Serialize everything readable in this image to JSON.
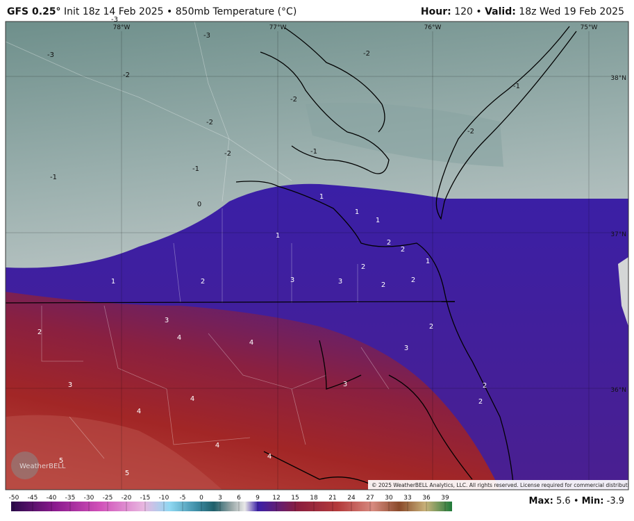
{
  "header": {
    "model": "GFS 0.25°",
    "init": "Init 18z 14 Feb 2025",
    "separator": "•",
    "field": "850mb Temperature (°C)",
    "hour_label": "Hour:",
    "hour": 120,
    "valid_label": "Valid:",
    "valid": "18z Wed 19 Feb 2025"
  },
  "map": {
    "grid_labels": [
      "78°W",
      "77°W",
      "76°W",
      "75°W",
      "38°N",
      "37°N",
      "36°N"
    ],
    "contour_labels": [
      -3,
      -3,
      -3,
      -2,
      -2,
      -2,
      -2,
      -2,
      -2,
      -1,
      -1,
      -1,
      -1,
      0,
      1,
      1,
      1,
      1,
      1,
      1,
      2,
      2,
      2,
      2,
      2,
      2,
      2,
      2,
      2,
      2,
      3,
      3,
      3,
      3,
      3,
      3,
      4,
      4,
      4,
      4,
      4,
      4,
      5,
      5
    ],
    "logo": "WeatherBELL",
    "copyright": "© 2025 WeatherBELL Analytics, LLC. All rights reserved. License required for commercial distribution."
  },
  "colorbar": {
    "ticks": [
      -50,
      -45,
      -40,
      -35,
      -30,
      -25,
      -20,
      -15,
      -10,
      -5,
      0,
      3,
      6,
      9,
      12,
      15,
      18,
      21,
      24,
      27,
      30,
      33,
      36,
      39
    ]
  },
  "stats": {
    "max_label": "Max:",
    "max": 5.6,
    "min_label": "Min:",
    "min": -3.9
  }
}
